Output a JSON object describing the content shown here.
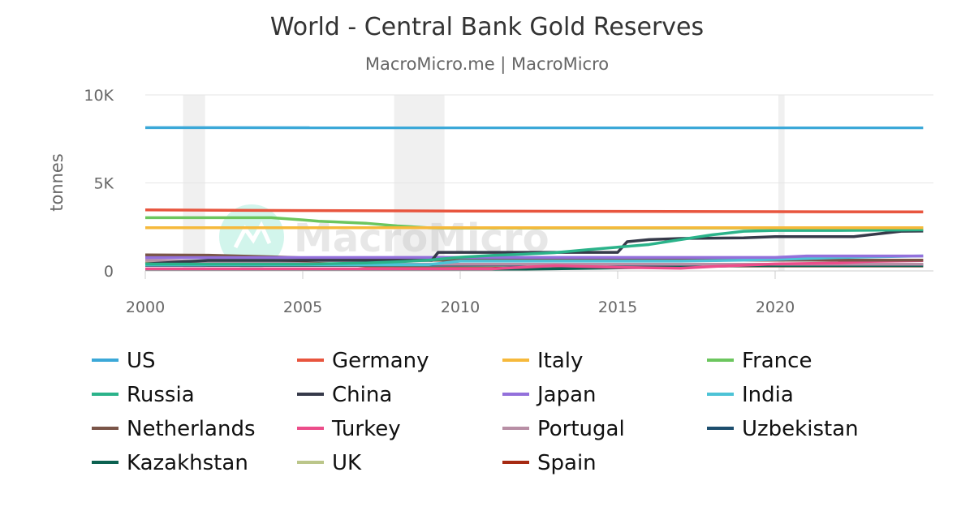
{
  "chart_data": {
    "type": "line",
    "title": "World - Central Bank Gold Reserves",
    "subtitle": "MacroMicro.me | MacroMicro",
    "ylabel": "tonnes",
    "xlabel": "",
    "xlim": [
      2000,
      2024.8
    ],
    "ylim": [
      0,
      10000
    ],
    "y_ticks": [
      {
        "v": 0,
        "label": "0"
      },
      {
        "v": 5000,
        "label": "5K"
      },
      {
        "v": 10000,
        "label": "10K"
      }
    ],
    "x_ticks": [
      {
        "v": 2000,
        "label": "2000"
      },
      {
        "v": 2005,
        "label": "2005"
      },
      {
        "v": 2010,
        "label": "2010"
      },
      {
        "v": 2015,
        "label": "2015"
      },
      {
        "v": 2020,
        "label": "2020"
      }
    ],
    "grid": true,
    "legend_placement": "bottom",
    "shaded_periods": [
      [
        2001.2,
        2001.9
      ],
      [
        2007.9,
        2009.5
      ],
      [
        2020.1,
        2020.3
      ]
    ],
    "watermark": "MacroMicro",
    "series": [
      {
        "name": "US",
        "color": "#3BA8D8",
        "points": [
          [
            2000,
            8137
          ],
          [
            2024.7,
            8133
          ]
        ]
      },
      {
        "name": "Germany",
        "color": "#E8553E",
        "points": [
          [
            2000,
            3469
          ],
          [
            2005,
            3428
          ],
          [
            2010,
            3401
          ],
          [
            2015,
            3381
          ],
          [
            2020,
            3362
          ],
          [
            2024.7,
            3352
          ]
        ]
      },
      {
        "name": "Italy",
        "color": "#F6B93B",
        "points": [
          [
            2000,
            2452
          ],
          [
            2024.7,
            2452
          ]
        ]
      },
      {
        "name": "France",
        "color": "#6CC65E",
        "points": [
          [
            2000,
            3025
          ],
          [
            2004,
            3025
          ],
          [
            2005,
            2900
          ],
          [
            2005.5,
            2825
          ],
          [
            2006,
            2790
          ],
          [
            2007,
            2710
          ],
          [
            2008,
            2560
          ],
          [
            2009,
            2450
          ],
          [
            2009.5,
            2435
          ],
          [
            2024.7,
            2437
          ]
        ]
      },
      {
        "name": "Russia",
        "color": "#2BB38A",
        "points": [
          [
            2000,
            384
          ],
          [
            2005,
            387
          ],
          [
            2007,
            450
          ],
          [
            2008,
            520
          ],
          [
            2009,
            610
          ],
          [
            2010,
            780
          ],
          [
            2011,
            880
          ],
          [
            2012,
            950
          ],
          [
            2013,
            1035
          ],
          [
            2014,
            1200
          ],
          [
            2015,
            1350
          ],
          [
            2016,
            1500
          ],
          [
            2017,
            1780
          ],
          [
            2018,
            2050
          ],
          [
            2019,
            2250
          ],
          [
            2020,
            2300
          ],
          [
            2022,
            2300
          ],
          [
            2024.7,
            2335
          ]
        ]
      },
      {
        "name": "China",
        "color": "#363A4A",
        "points": [
          [
            2000,
            395
          ],
          [
            2001,
            500
          ],
          [
            2002,
            600
          ],
          [
            2009.1,
            600
          ],
          [
            2009.3,
            1054
          ],
          [
            2015.0,
            1054
          ],
          [
            2015.3,
            1658
          ],
          [
            2016,
            1780
          ],
          [
            2017,
            1843
          ],
          [
            2019,
            1880
          ],
          [
            2020,
            1948
          ],
          [
            2022.5,
            1948
          ],
          [
            2023,
            2050
          ],
          [
            2024,
            2250
          ],
          [
            2024.7,
            2264
          ]
        ]
      },
      {
        "name": "Japan",
        "color": "#9370DB",
        "points": [
          [
            2000,
            754
          ],
          [
            2010,
            765
          ],
          [
            2020,
            765
          ],
          [
            2021,
            846
          ],
          [
            2024.7,
            846
          ]
        ]
      },
      {
        "name": "India",
        "color": "#4DC3D6",
        "points": [
          [
            2000,
            358
          ],
          [
            2009,
            358
          ],
          [
            2010,
            558
          ],
          [
            2017,
            558
          ],
          [
            2019,
            612
          ],
          [
            2020,
            650
          ],
          [
            2022,
            760
          ],
          [
            2024.7,
            854
          ]
        ]
      },
      {
        "name": "Netherlands",
        "color": "#7A5548",
        "points": [
          [
            2000,
            912
          ],
          [
            2002,
            890
          ],
          [
            2004,
            800
          ],
          [
            2006,
            690
          ],
          [
            2008,
            612
          ],
          [
            2024.7,
            612
          ]
        ]
      },
      {
        "name": "Turkey",
        "color": "#EC4D8A",
        "points": [
          [
            2000,
            116
          ],
          [
            2011,
            116
          ],
          [
            2013,
            300
          ],
          [
            2015,
            200
          ],
          [
            2017,
            150
          ],
          [
            2018,
            250
          ],
          [
            2020,
            400
          ],
          [
            2022,
            450
          ],
          [
            2023,
            540
          ],
          [
            2024.7,
            585
          ]
        ]
      },
      {
        "name": "Portugal",
        "color": "#B88FA5",
        "points": [
          [
            2000,
            607
          ],
          [
            2005,
            420
          ],
          [
            2007,
            382
          ],
          [
            2024.7,
            382
          ]
        ]
      },
      {
        "name": "Uzbekistan",
        "color": "#1D4E6E",
        "points": [
          [
            2000,
            320
          ],
          [
            2010,
            330
          ],
          [
            2015,
            350
          ],
          [
            2020,
            380
          ],
          [
            2024.7,
            370
          ]
        ]
      },
      {
        "name": "Kazakhstan",
        "color": "#0B6150",
        "points": [
          [
            2000,
            56
          ],
          [
            2010,
            70
          ],
          [
            2013,
            120
          ],
          [
            2016,
            200
          ],
          [
            2019,
            300
          ],
          [
            2024.7,
            300
          ]
        ]
      },
      {
        "name": "UK",
        "color": "#BBC68A",
        "points": [
          [
            2000,
            487
          ],
          [
            2001,
            400
          ],
          [
            2002,
            313
          ],
          [
            2024.7,
            310
          ]
        ]
      },
      {
        "name": "Spain",
        "color": "#A62A12",
        "points": [
          [
            2000,
            523
          ],
          [
            2005,
            455
          ],
          [
            2006,
            400
          ],
          [
            2007,
            281
          ],
          [
            2024.7,
            281
          ]
        ]
      }
    ]
  }
}
